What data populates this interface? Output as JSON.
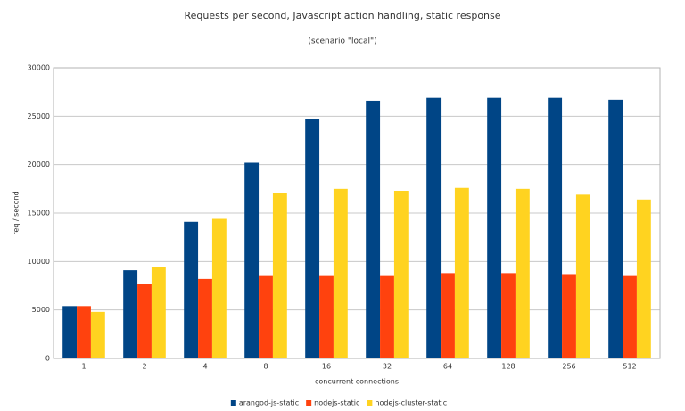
{
  "chart_data": {
    "type": "bar",
    "title": "Requests per second, Javascript action handling, static response",
    "subtitle": "(scenario \"local\")",
    "x_label": "concurrent connections",
    "y_label": "req / second",
    "categories": [
      "1",
      "2",
      "4",
      "8",
      "16",
      "32",
      "64",
      "128",
      "256",
      "512"
    ],
    "series": [
      {
        "name": "arangod-js-static",
        "color": "#004586",
        "values": [
          5400,
          9100,
          14100,
          20200,
          24700,
          26600,
          26900,
          26900,
          26900,
          26700
        ]
      },
      {
        "name": "nodejs-static",
        "color": "#ff420e",
        "values": [
          5400,
          7700,
          8200,
          8500,
          8500,
          8500,
          8800,
          8800,
          8700,
          8500
        ]
      },
      {
        "name": "nodejs-cluster-static",
        "color": "#ffd320",
        "values": [
          4800,
          9400,
          14400,
          17100,
          17500,
          17300,
          17600,
          17500,
          16900,
          16400
        ]
      }
    ],
    "ylim": [
      0,
      30000
    ],
    "yticks": [
      0,
      5000,
      10000,
      15000,
      20000,
      25000,
      30000
    ],
    "grid": true,
    "legend": "bottom"
  }
}
